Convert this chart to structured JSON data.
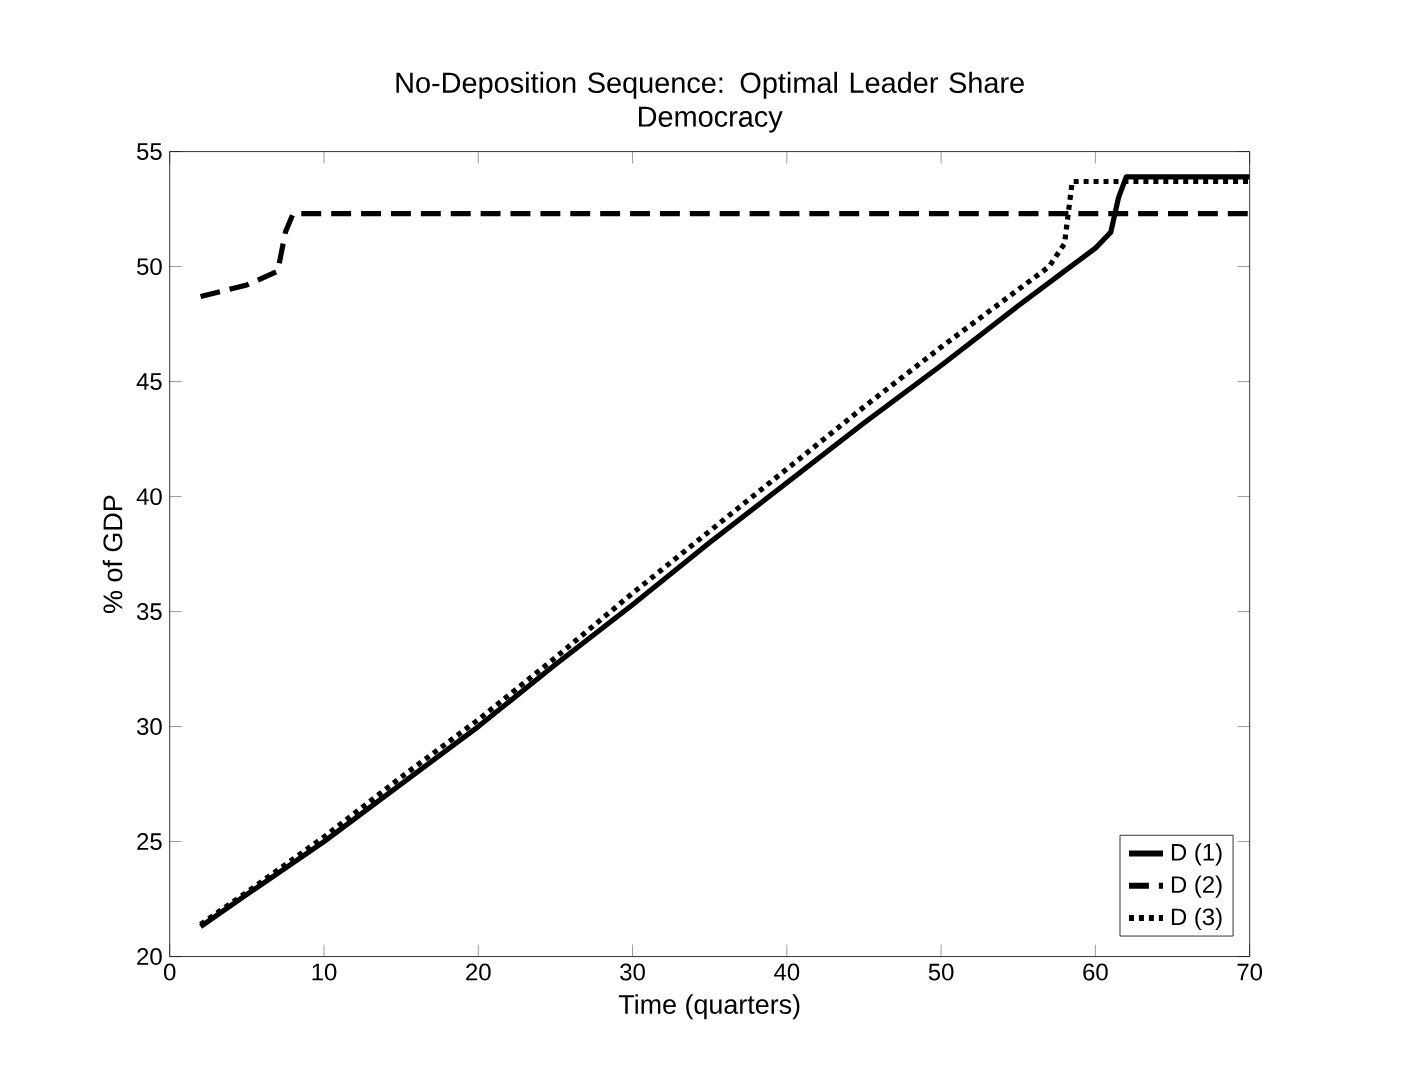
{
  "chart_data": {
    "type": "line",
    "title": "No-Deposition Sequence: Optimal Leader Share\nDemocracy",
    "xlabel": "Time (quarters)",
    "ylabel": "% of GDP",
    "xlim": [
      0,
      70
    ],
    "ylim": [
      20,
      55
    ],
    "xticks": [
      0,
      10,
      20,
      30,
      40,
      50,
      60,
      70
    ],
    "yticks": [
      20,
      25,
      30,
      35,
      40,
      45,
      50,
      55
    ],
    "legend": "bottom right",
    "grid": false,
    "marker": "none",
    "series": [
      {
        "name": "D (1)",
        "color": "#000000",
        "line_style": "solid",
        "x": [
          2,
          5,
          10,
          15,
          20,
          25,
          30,
          35,
          40,
          45,
          50,
          55,
          58,
          60,
          61,
          61.5,
          62,
          70
        ],
        "values": [
          21.3,
          22.7,
          25,
          27.5,
          30,
          32.7,
          35.3,
          38,
          40.6,
          43.2,
          45.7,
          48.3,
          49.8,
          50.8,
          51.5,
          53,
          53.9,
          53.9
        ]
      },
      {
        "name": "D (2)",
        "color": "#000000",
        "line_style": "dashed",
        "x": [
          2,
          5,
          7,
          7.5,
          8,
          70
        ],
        "values": [
          48.7,
          49.2,
          49.8,
          51.5,
          52.3,
          52.3
        ]
      },
      {
        "name": "D (3)",
        "color": "#000000",
        "line_style": "dotted",
        "x": [
          2,
          5,
          10,
          15,
          20,
          25,
          30,
          35,
          40,
          45,
          50,
          55,
          57,
          58,
          58.5,
          70
        ],
        "values": [
          21.4,
          22.8,
          25.2,
          27.8,
          30.3,
          33,
          35.8,
          38.5,
          41.2,
          43.9,
          46.5,
          49,
          50,
          51,
          53.7,
          53.7
        ]
      }
    ]
  }
}
